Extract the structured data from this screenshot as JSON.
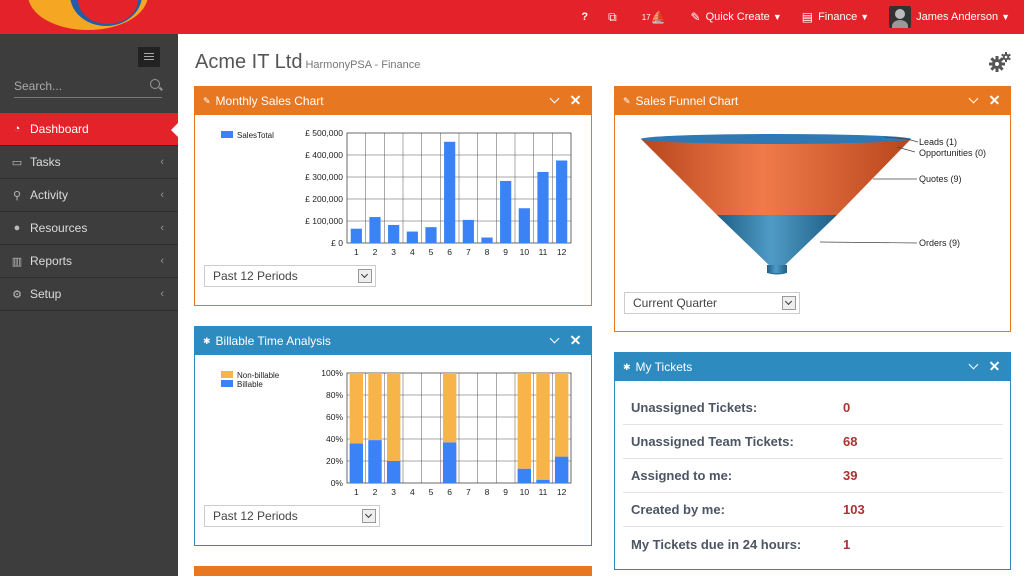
{
  "topbar": {
    "help_label": "?",
    "alerts_count": "17",
    "quick_create_label": "Quick Create",
    "finance_label": "Finance",
    "user_name": "James Anderson"
  },
  "sidebar": {
    "search_placeholder": "Search...",
    "items": [
      {
        "label": "Dashboard",
        "icon": "dashboard-icon",
        "active": true
      },
      {
        "label": "Tasks",
        "icon": "tasks-icon"
      },
      {
        "label": "Activity",
        "icon": "pin-icon"
      },
      {
        "label": "Resources",
        "icon": "user-icon"
      },
      {
        "label": "Reports",
        "icon": "reports-icon"
      },
      {
        "label": "Setup",
        "icon": "cogs-icon"
      }
    ]
  },
  "page": {
    "title": "Acme IT Ltd",
    "subtitle": "HarmonyPSA - Finance"
  },
  "monthly_sales": {
    "title": "Monthly Sales Chart",
    "period_select": "Past 12 Periods"
  },
  "sales_funnel": {
    "title": "Sales Funnel Chart",
    "period_select": "Current Quarter"
  },
  "billable": {
    "title": "Billable Time Analysis",
    "period_select": "Past 12 Periods"
  },
  "tickets": {
    "title": "My Tickets",
    "rows": [
      {
        "label": "Unassigned Tickets:",
        "value": "0"
      },
      {
        "label": "Unassigned Team Tickets:",
        "value": "68"
      },
      {
        "label": "Assigned to me:",
        "value": "39"
      },
      {
        "label": "Created by me:",
        "value": "103"
      },
      {
        "label": "My Tickets due in 24 hours:",
        "value": "1"
      }
    ]
  },
  "colors": {
    "accent": "#e4222a",
    "orange": "#e87722",
    "blue": "#2e8bc0"
  },
  "chart_data": [
    {
      "type": "bar",
      "legend": "SalesTotal",
      "categories": [
        "1",
        "2",
        "3",
        "4",
        "5",
        "6",
        "7",
        "8",
        "9",
        "10",
        "11",
        "12"
      ],
      "values": [
        65000,
        118000,
        82000,
        52000,
        72000,
        460000,
        105000,
        25000,
        282000,
        158000,
        323000,
        375000
      ],
      "yticks": [
        "£ 0",
        "£ 100,000",
        "£ 200,000",
        "£ 300,000",
        "£ 400,000",
        "£ 500,000"
      ],
      "ylim": [
        0,
        500000
      ],
      "color": "#3b82f6"
    },
    {
      "type": "funnel",
      "stages": [
        {
          "label": "Leads (1)",
          "value": 1
        },
        {
          "label": "Opportunities (0)",
          "value": 0
        },
        {
          "label": "Quotes (9)",
          "value": 9
        },
        {
          "label": "Orders (9)",
          "value": 9
        }
      ]
    },
    {
      "type": "bar",
      "stacked": true,
      "percent": true,
      "categories": [
        "1",
        "2",
        "3",
        "4",
        "5",
        "6",
        "7",
        "8",
        "9",
        "10",
        "11",
        "12"
      ],
      "series": [
        {
          "name": "Non-billable",
          "color": "#f8b34a",
          "values": [
            64,
            61,
            80,
            0,
            0,
            63,
            0,
            0,
            0,
            87,
            97,
            76
          ]
        },
        {
          "name": "Billable",
          "color": "#3b82f6",
          "values": [
            36,
            39,
            20,
            0,
            0,
            37,
            0,
            0,
            0,
            13,
            3,
            24
          ]
        }
      ],
      "yticks": [
        "0%",
        "20%",
        "40%",
        "60%",
        "80%",
        "100%"
      ],
      "ylim": [
        0,
        100
      ]
    }
  ]
}
